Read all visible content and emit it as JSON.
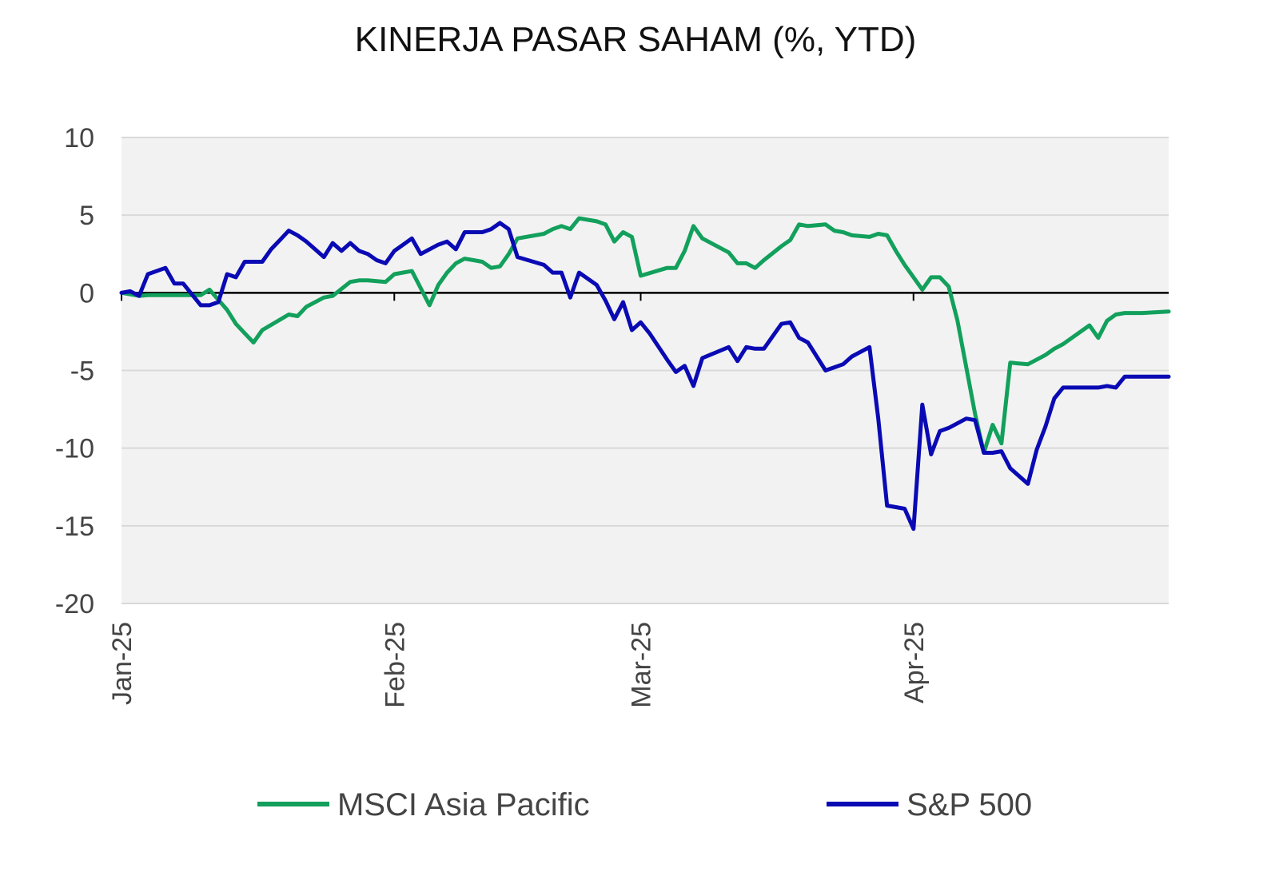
{
  "chart_data": {
    "type": "line",
    "title": "KINERJA PASAR SAHAM (%, YTD)",
    "xlabel": "",
    "ylabel": "",
    "ylim": [
      -20,
      10
    ],
    "yticks": [
      10,
      5,
      0,
      -5,
      -10,
      -15,
      -20
    ],
    "ytick_labels": [
      "10",
      "5",
      "0",
      "-5",
      "-10",
      "-15",
      "-20"
    ],
    "xlim": [
      0,
      119
    ],
    "xticks": [
      0,
      31,
      59,
      90
    ],
    "xtick_labels": [
      "Jan-25",
      "Feb-25",
      "Mar-25",
      "Apr-25"
    ],
    "grid": true,
    "zero_line": true,
    "legend_position": "bottom",
    "colors": {
      "background": "#f2f2f2",
      "grid": "#d9d9d9",
      "zero": "#000000"
    },
    "series": [
      {
        "name": "MSCI Asia Pacific",
        "color": "#12a05c",
        "x": [
          0,
          2,
          3,
          5,
          9,
          10,
          12,
          13,
          14,
          15,
          16,
          19,
          20,
          21,
          23,
          24,
          26,
          27,
          28,
          30,
          31,
          33,
          34,
          35,
          36,
          37,
          38,
          39,
          40,
          41,
          42,
          43,
          44,
          45,
          48,
          49,
          50,
          51,
          52,
          54,
          55,
          56,
          57,
          58,
          59,
          62,
          63,
          64,
          65,
          66,
          69,
          70,
          71,
          72,
          73,
          75,
          76,
          77,
          78,
          80,
          81,
          82,
          83,
          85,
          86,
          87,
          88,
          89,
          90,
          91,
          92,
          93,
          94,
          95,
          96,
          97,
          98,
          99,
          100,
          101,
          103,
          104,
          105,
          106,
          107,
          110,
          111,
          112,
          113,
          114,
          115,
          116,
          119
        ],
        "values": [
          0.0,
          -0.2,
          -0.15,
          -0.15,
          -0.15,
          0.2,
          -1.1,
          -2.0,
          -2.6,
          -3.2,
          -2.4,
          -1.4,
          -1.5,
          -0.9,
          -0.3,
          -0.2,
          0.7,
          0.8,
          0.8,
          0.7,
          1.2,
          1.4,
          0.3,
          -0.8,
          0.5,
          1.3,
          1.9,
          2.2,
          2.1,
          2.0,
          1.6,
          1.7,
          2.5,
          3.5,
          3.8,
          4.1,
          4.3,
          4.1,
          4.8,
          4.6,
          4.4,
          3.3,
          3.9,
          3.6,
          1.1,
          1.6,
          1.6,
          2.7,
          4.3,
          3.5,
          2.6,
          1.9,
          1.9,
          1.6,
          2.1,
          3.0,
          3.4,
          4.4,
          4.3,
          4.4,
          4.0,
          3.9,
          3.7,
          3.6,
          3.8,
          3.7,
          2.7,
          1.8,
          1.0,
          0.2,
          1.0,
          1.0,
          0.4,
          -1.8,
          -4.8,
          -7.8,
          -10.3,
          -8.5,
          -9.7,
          -4.5,
          -4.6,
          -4.3,
          -4.0,
          -3.6,
          -3.3,
          -2.1,
          -2.9,
          -1.8,
          -1.4,
          -1.3,
          -1.3,
          -1.3,
          -1.2
        ]
      },
      {
        "name": "S&P 500",
        "color": "#0a0ab4",
        "x": [
          0,
          1,
          2,
          3,
          5,
          6,
          7,
          9,
          10,
          11,
          12,
          13,
          14,
          15,
          16,
          17,
          18,
          19,
          20,
          21,
          22,
          23,
          24,
          25,
          26,
          27,
          28,
          29,
          30,
          31,
          33,
          34,
          35,
          36,
          37,
          38,
          39,
          40,
          41,
          42,
          43,
          44,
          45,
          48,
          49,
          50,
          51,
          52,
          54,
          55,
          56,
          57,
          58,
          59,
          60,
          62,
          63,
          64,
          65,
          66,
          69,
          70,
          71,
          72,
          73,
          75,
          76,
          77,
          78,
          80,
          81,
          82,
          83,
          85,
          86,
          87,
          88,
          89,
          90,
          91,
          92,
          93,
          94,
          95,
          96,
          97,
          98,
          99,
          100,
          101,
          103,
          104,
          105,
          106,
          107,
          110,
          111,
          112,
          113,
          114,
          115,
          116,
          119
        ],
        "values": [
          0.0,
          0.1,
          -0.2,
          1.2,
          1.6,
          0.6,
          0.6,
          -0.8,
          -0.8,
          -0.6,
          1.2,
          1.0,
          2.0,
          2.0,
          2.0,
          2.8,
          3.4,
          4.0,
          3.7,
          3.3,
          2.8,
          2.3,
          3.2,
          2.7,
          3.2,
          2.7,
          2.5,
          2.1,
          1.9,
          2.7,
          3.5,
          2.5,
          2.8,
          3.1,
          3.3,
          2.8,
          3.9,
          3.9,
          3.9,
          4.1,
          4.5,
          4.1,
          2.3,
          1.8,
          1.3,
          1.3,
          -0.3,
          1.3,
          0.5,
          -0.5,
          -1.7,
          -0.6,
          -2.4,
          -1.9,
          -2.6,
          -4.3,
          -5.1,
          -4.7,
          -6.0,
          -4.2,
          -3.5,
          -4.4,
          -3.5,
          -3.6,
          -3.6,
          -2.0,
          -1.9,
          -2.9,
          -3.2,
          -5.0,
          -4.8,
          -4.6,
          -4.1,
          -3.5,
          -8.1,
          -13.7,
          -13.8,
          -13.9,
          -15.2,
          -7.2,
          -10.4,
          -8.9,
          -8.7,
          -8.4,
          -8.1,
          -8.2,
          -10.3,
          -10.3,
          -10.2,
          -11.3,
          -12.3,
          -10.1,
          -8.6,
          -6.8,
          -6.1,
          -6.1,
          -6.1,
          -6.0,
          -6.1,
          -5.4,
          -5.4,
          -5.4,
          -5.4
        ]
      }
    ]
  }
}
